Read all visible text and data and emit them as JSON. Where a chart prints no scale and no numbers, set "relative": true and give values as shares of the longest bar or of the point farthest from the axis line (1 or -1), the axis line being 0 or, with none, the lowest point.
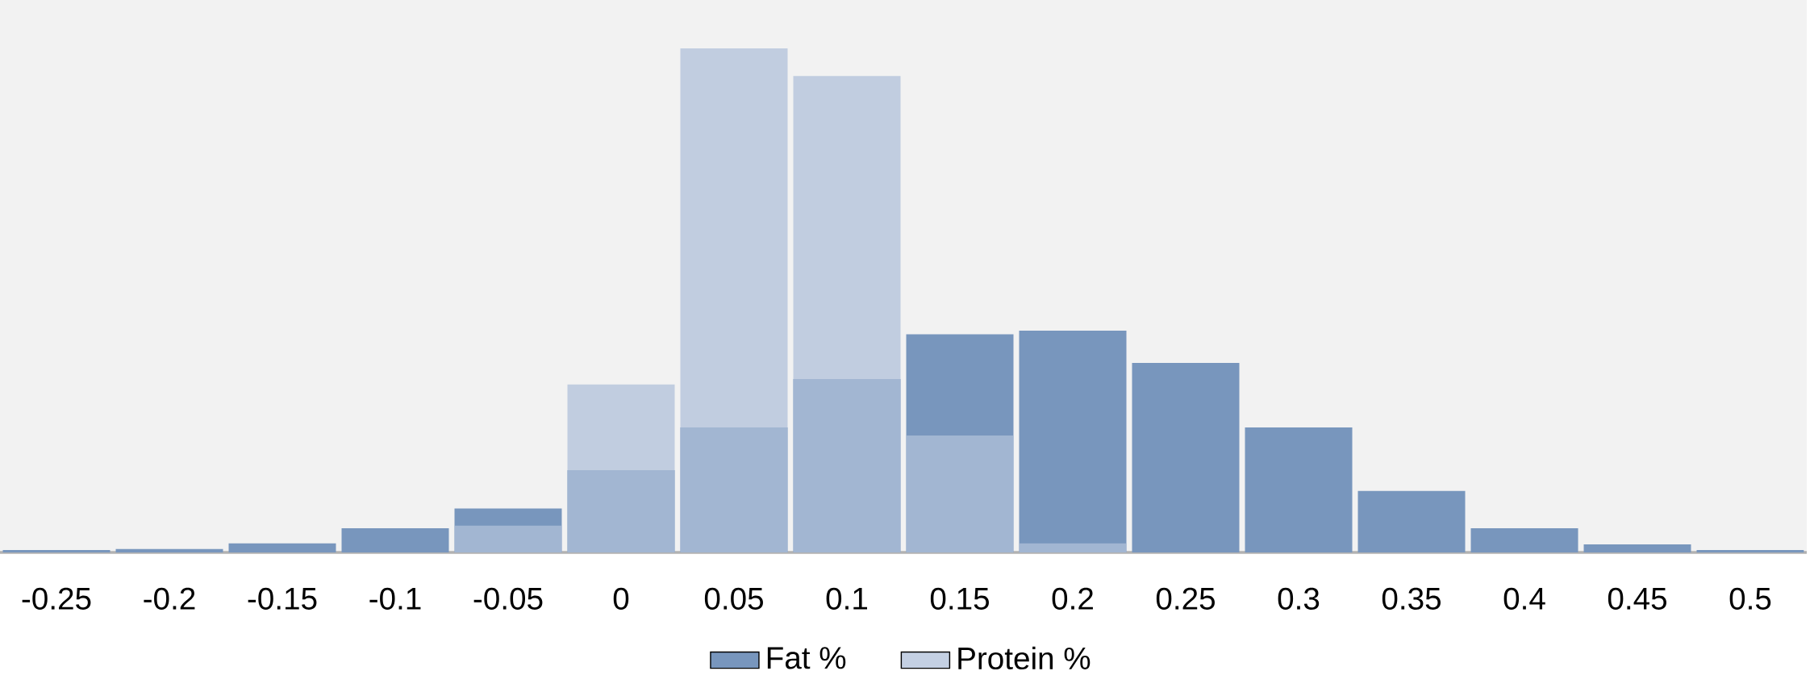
{
  "chart_data": {
    "type": "bar",
    "relative": true,
    "categories": [
      "-0.25",
      "-0.2",
      "-0.15",
      "-0.1",
      "-0.05",
      "0",
      "0.05",
      "0.1",
      "0.15",
      "0.2",
      "0.25",
      "0.3",
      "0.35",
      "0.4",
      "0.45",
      "0.5"
    ],
    "series": [
      {
        "name": "Fat %",
        "color": "#7896bd",
        "values": [
          0.005,
          0.007,
          0.018,
          0.048,
          0.087,
          0.163,
          0.248,
          0.344,
          0.433,
          0.44,
          0.376,
          0.248,
          0.122,
          0.048,
          0.016,
          0.005
        ]
      },
      {
        "name": "Protein %",
        "color": "#b0c0da",
        "values": [
          0,
          0,
          0,
          0,
          0.053,
          0.333,
          1,
          0.945,
          0.232,
          0.018,
          0,
          0,
          0,
          0,
          0,
          0
        ]
      }
    ],
    "legend": "bottom"
  }
}
